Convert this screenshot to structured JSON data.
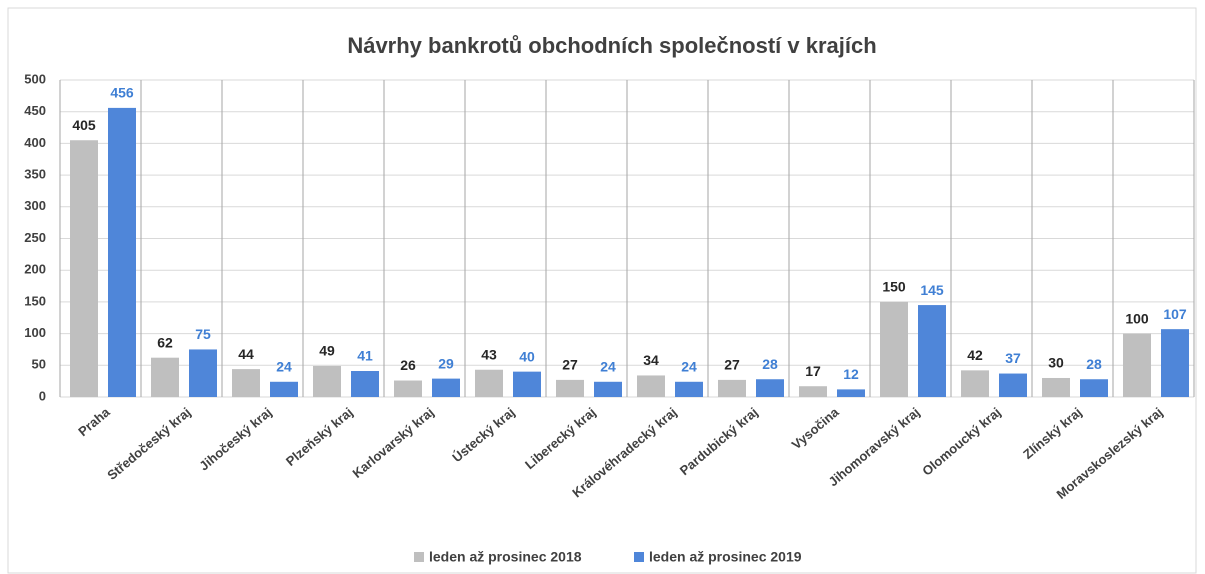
{
  "chart_data": {
    "type": "bar",
    "title": "Návrhy bankrotů obchodních společností v krajích",
    "categories": [
      "Praha",
      "Středočeský kraj",
      "Jihočeský kraj",
      "Plzeňský kraj",
      "Karlovarský kraj",
      "Ústecký kraj",
      "Liberecký kraj",
      "Královéhradecký kraj",
      "Pardubický kraj",
      "Vysočina",
      "Jihomoravský kraj",
      "Olomoucký kraj",
      "Zlínský kraj",
      "Moravskoslezský kraj"
    ],
    "series": [
      {
        "name": "leden až prosinec 2018",
        "color": "#bfbfbf",
        "label_color": "#262626",
        "values": [
          405,
          62,
          44,
          49,
          26,
          43,
          27,
          34,
          27,
          17,
          150,
          42,
          30,
          100
        ]
      },
      {
        "name": "leden až prosinec 2019",
        "color": "#4f86d9",
        "label_color": "#3f7fd4",
        "values": [
          456,
          75,
          24,
          41,
          29,
          40,
          24,
          24,
          28,
          12,
          145,
          37,
          28,
          107
        ]
      }
    ],
    "ylim": [
      0,
      500
    ],
    "yticks": [
      0,
      50,
      100,
      150,
      200,
      250,
      300,
      350,
      400,
      450,
      500
    ],
    "grid": true,
    "legend": "bottom"
  }
}
